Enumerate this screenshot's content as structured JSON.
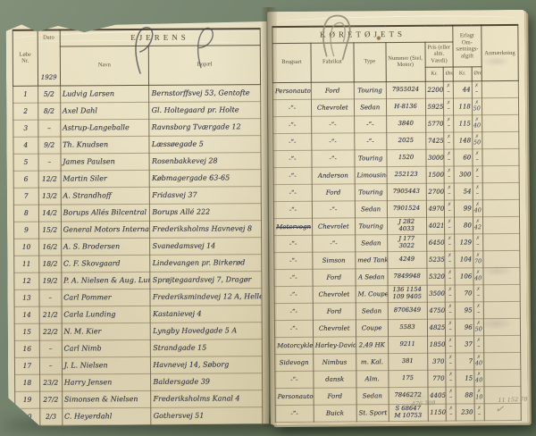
{
  "left_page": {
    "title": "EJERENS",
    "headers": {
      "nr": "Løbe Nr.",
      "dato": "Dato",
      "year": "1929",
      "navn": "Navn",
      "bopael": "Bopæl"
    },
    "rows": [
      {
        "nr": "1",
        "dato": "5/2",
        "navn": "Ludvig Larsen",
        "bopael": "Bernstorffsvej 53, Gentofte"
      },
      {
        "nr": "2",
        "dato": "8/2",
        "navn": "Axel Dahl",
        "bopael": "Gl. Holtegaard pr. Holte"
      },
      {
        "nr": "3",
        "dato": "–",
        "navn": "Astrup-Langeballe",
        "bopael": "Ravnsborg Tværgade 12"
      },
      {
        "nr": "4",
        "dato": "9/2",
        "navn": "Th. Knudsen",
        "bopael": "Læssøegade 5"
      },
      {
        "nr": "5",
        "dato": "–",
        "navn": "James Paulsen",
        "bopael": "Rosenbakkevej 28"
      },
      {
        "nr": "6",
        "dato": "12/2",
        "navn": "Martin Siler",
        "bopael": "Købmagergade 63-65"
      },
      {
        "nr": "7",
        "dato": "13/2",
        "navn": "A. Strandhoff",
        "bopael": "Fridasvej 37"
      },
      {
        "nr": "8",
        "dato": "14/2",
        "navn": "Borups Allés Bilcentral",
        "bopael": "Borups Allé 222"
      },
      {
        "nr": "9",
        "dato": "15/2",
        "navn": "General Motors International",
        "bopael": "Frederiksholms Havnevej 8"
      },
      {
        "nr": "10",
        "dato": "16/2",
        "navn": "A. S. Brodersen",
        "bopael": "Svanedamsvej 14"
      },
      {
        "nr": "11",
        "dato": "18/2",
        "navn": "C. F. Skovgaard",
        "bopael": "Lindevangen pr. Birkerød"
      },
      {
        "nr": "12",
        "dato": "19/2",
        "navn": "P. A. Nielsen & Aug. Lund",
        "bopael": "Sprøjtegaardsvej 7, Dragør"
      },
      {
        "nr": "13",
        "dato": "–",
        "navn": "Carl Pommer",
        "bopael": "Frederiksmindevej 12 A, Hellerup"
      },
      {
        "nr": "14",
        "dato": "21/2",
        "navn": "Carla Lunding",
        "bopael": "Kastanievej 4"
      },
      {
        "nr": "15",
        "dato": "22/2",
        "navn": "N. M. Kier",
        "bopael": "Lyngby Hovedgade 5 A"
      },
      {
        "nr": "16",
        "dato": "–",
        "navn": "Carl Nimb",
        "bopael": "Strandgade 15"
      },
      {
        "nr": "17",
        "dato": "–",
        "navn": "J. L. Nielsen",
        "bopael": "Havnevej 14, Søborg"
      },
      {
        "nr": "18",
        "dato": "23/2",
        "navn": "Harry Jensen",
        "bopael": "Baldersgade 39"
      },
      {
        "nr": "19",
        "dato": "27/2",
        "navn": "Simonsen & Nielsen",
        "bopael": "Frederiksholms Kanal 4"
      },
      {
        "nr": "20",
        "dato": "2/3",
        "navn": "C. Heyerdahl",
        "bopael": "Gothersvej 51"
      }
    ]
  },
  "right_page": {
    "title": "KØRETØJETS",
    "headers": {
      "brugsart": "Brugsart",
      "fabrikat": "Fabrikat",
      "type": "Type",
      "nummer": "Nummer (Stel, Motor)",
      "pris": "Pris (eller alm. Værdi)",
      "erlagt": "Erlagt Om-sætnings-afgift",
      "anm": "Anmærkning",
      "kr": "Kr.",
      "ore": "Øre"
    },
    "check_glyph": "✗",
    "rows": [
      {
        "brugsart": "Personauto",
        "fabrikat": "Ford",
        "type": "Touring",
        "nummer": "7955024",
        "pris_kr": "2200",
        "pris_ore": "–",
        "erlagt_kr": "44",
        "erlagt_ore": "–"
      },
      {
        "brugsart": "-”-",
        "fabrikat": "Chevrolet",
        "type": "Sedan",
        "nummer": "H-8136",
        "pris_kr": "5925",
        "pris_ore": "–",
        "erlagt_kr": "118",
        "erlagt_ore": "50"
      },
      {
        "brugsart": "-”-",
        "fabrikat": "-”-",
        "type": "-”-",
        "nummer": "3840",
        "pris_kr": "5770",
        "pris_ore": "–",
        "erlagt_kr": "115",
        "erlagt_ore": "40"
      },
      {
        "brugsart": "-”-",
        "fabrikat": "-”-",
        "type": "-”-",
        "nummer": "2025",
        "pris_kr": "7425",
        "pris_ore": "–",
        "erlagt_kr": "148",
        "erlagt_ore": "50"
      },
      {
        "brugsart": "-”-",
        "fabrikat": "-”-",
        "type": "Touring",
        "nummer": "1520",
        "pris_kr": "3000",
        "pris_ore": "–",
        "erlagt_kr": "60",
        "erlagt_ore": "–"
      },
      {
        "brugsart": "-”-",
        "fabrikat": "Anderson",
        "type": "Limousine",
        "nummer": "252123",
        "pris_kr": "15000",
        "pris_ore": "–",
        "erlagt_kr": "300",
        "erlagt_ore": "–"
      },
      {
        "brugsart": "-”-",
        "fabrikat": "Ford",
        "type": "Touring",
        "nummer": "7905443",
        "pris_kr": "2700",
        "pris_ore": "–",
        "erlagt_kr": "54",
        "erlagt_ore": "–"
      },
      {
        "brugsart": "-”-",
        "fabrikat": "-”-",
        "type": "Sedan",
        "nummer": "7901524",
        "pris_kr": "4970",
        "pris_ore": "–",
        "erlagt_kr": "99",
        "erlagt_ore": "40"
      },
      {
        "brugsart": "Motorvogn",
        "brugsart_struck": true,
        "fabrikat": "Chevrolet",
        "type": "Touring",
        "nummer": "J 282\n4033",
        "pris_kr": "4021",
        "pris_ore": "–",
        "erlagt_kr": "80",
        "erlagt_ore": "42"
      },
      {
        "brugsart": "-”-",
        "fabrikat": "-”-",
        "type": "Sedan",
        "nummer": "J 177\n3022",
        "pris_kr": "6450",
        "pris_ore": "–",
        "erlagt_kr": "129",
        "erlagt_ore": "–"
      },
      {
        "brugsart": "-”-",
        "fabrikat": "Simson",
        "type": "med Tank",
        "nummer": "4249",
        "pris_kr": "5235",
        "pris_ore": "–",
        "erlagt_kr": "104",
        "erlagt_ore": "70"
      },
      {
        "brugsart": "-”-",
        "fabrikat": "Ford",
        "type": "A Sedan",
        "nummer": "7849948",
        "pris_kr": "5320",
        "pris_ore": "–",
        "erlagt_kr": "106",
        "erlagt_ore": "40"
      },
      {
        "brugsart": "-”-",
        "fabrikat": "Chevrolet",
        "type": "M. Coupe",
        "nummer": "136 1154\n109 9405",
        "pris_kr": "3500",
        "pris_ore": "–",
        "erlagt_kr": "70",
        "erlagt_ore": "–"
      },
      {
        "brugsart": "-”-",
        "fabrikat": "Ford",
        "type": "Sedan",
        "nummer": "8706349",
        "pris_kr": "4750",
        "pris_ore": "–",
        "erlagt_kr": "95",
        "erlagt_ore": "–"
      },
      {
        "brugsart": "-”-",
        "fabrikat": "Chevrolet",
        "type": "Coupe",
        "nummer": "5583",
        "pris_kr": "4825",
        "pris_ore": "–",
        "erlagt_kr": "96",
        "erlagt_ore": "50"
      },
      {
        "brugsart": "Motorcykle",
        "fabrikat": "Harley-Davidson",
        "type": "2,49 HK",
        "nummer": "9211",
        "pris_kr": "1850",
        "pris_ore": "–",
        "erlagt_kr": "37",
        "erlagt_ore": "–"
      },
      {
        "brugsart": "Sidevogn",
        "fabrikat": "Nimbus",
        "type": "m. Kal.",
        "nummer": "381",
        "pris_kr": "370",
        "pris_ore": "–",
        "erlagt_kr": "7",
        "erlagt_ore": "40"
      },
      {
        "brugsart": "-”-",
        "fabrikat": "dansk",
        "type": "Alm.",
        "nummer": "175",
        "pris_kr": "770",
        "pris_ore": "–",
        "erlagt_kr": "15",
        "erlagt_ore": "40"
      },
      {
        "brugsart": "Personauto",
        "fabrikat": "Ford",
        "type": "Sedan",
        "nummer": "7846272",
        "pris_kr": "4405",
        "pris_ore": "–",
        "erlagt_kr": "88",
        "erlagt_ore": "10"
      },
      {
        "brugsart": "-”-",
        "fabrikat": "Buick",
        "type": "St. Sport",
        "nummer": "S 68647\nM 10753",
        "pris_kr": "11500",
        "pris_ore": "–",
        "erlagt_kr": "230",
        "erlagt_ore": "–"
      }
    ],
    "pencil": {
      "total_pris": "476 708",
      "total_erlagt": "11 152 78",
      "mark": "✓"
    }
  }
}
